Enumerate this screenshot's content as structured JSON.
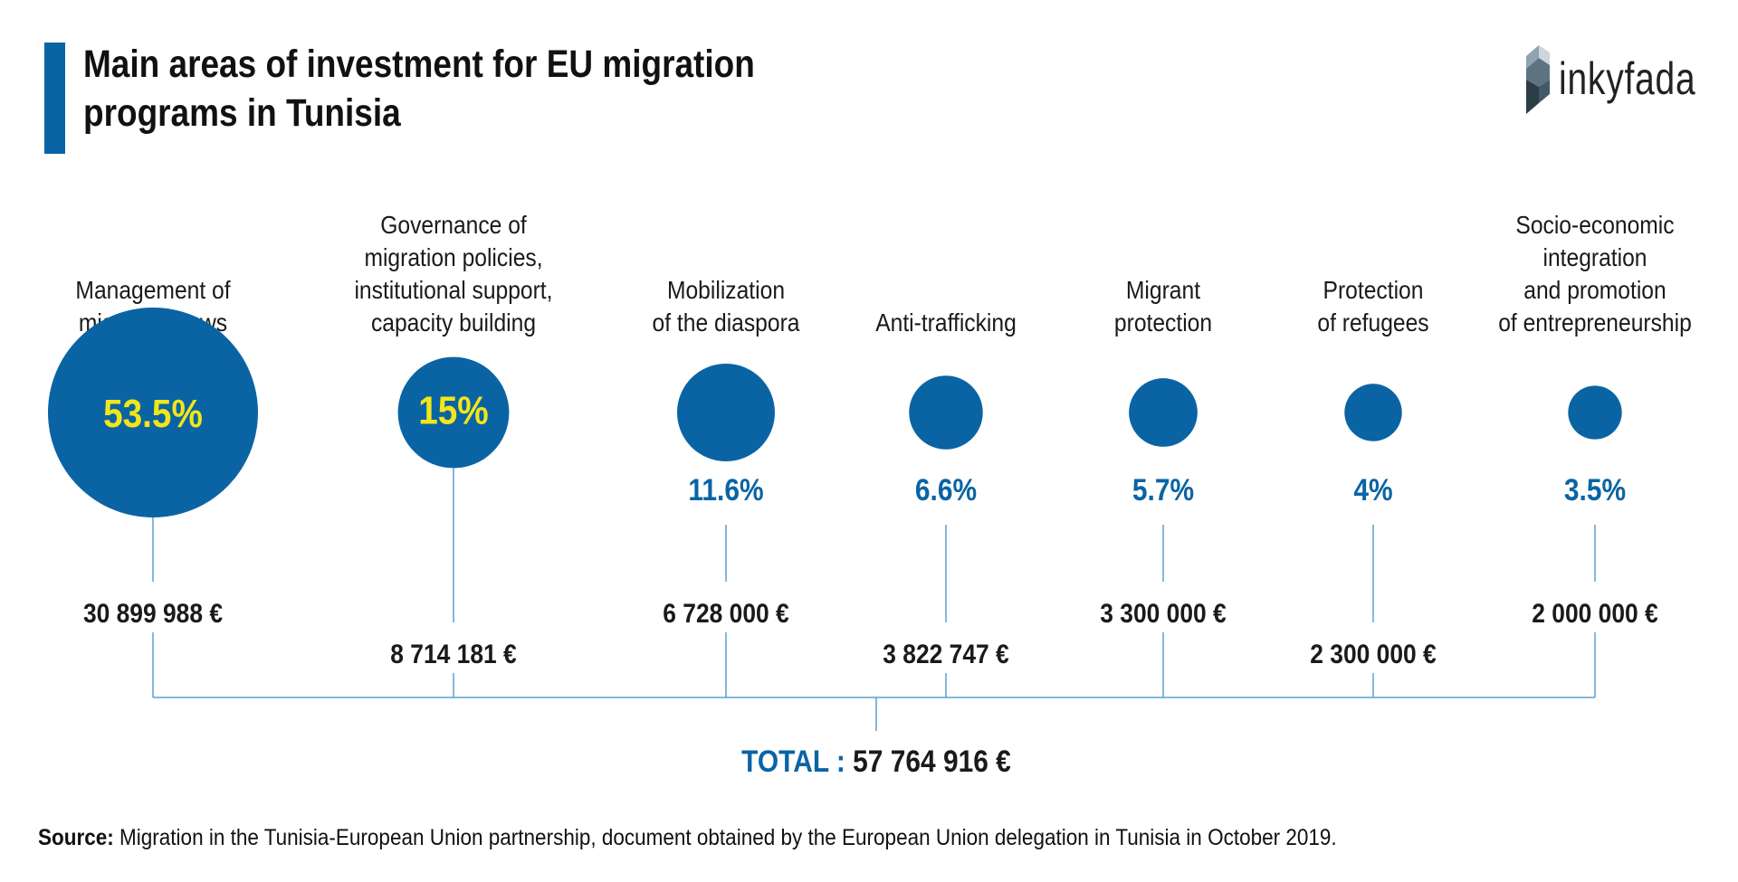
{
  "title": {
    "line1": "Main areas of investment for EU migration",
    "line2": "programs in Tunisia"
  },
  "logo": {
    "text": "inkyfada",
    "icon": "inkyfada-logo-icon"
  },
  "colors": {
    "accent": "#0a64a4",
    "highlight": "#f2e618",
    "line": "#5aa0cf",
    "text": "#1a1a1a"
  },
  "chart_data": {
    "type": "bubble",
    "unit": "€",
    "categories": [
      {
        "label": [
          "Management of",
          "migration flows"
        ],
        "percent": 53.5,
        "percent_label": "53.5%",
        "amount": 30899988,
        "amount_label": "30 899 988 €",
        "percent_inside": true
      },
      {
        "label": [
          "Governance of",
          "migration policies,",
          "institutional support,",
          "capacity building"
        ],
        "percent": 15,
        "percent_label": "15%",
        "amount": 8714181,
        "amount_label": "8 714 181 €",
        "percent_inside": true
      },
      {
        "label": [
          "Mobilization",
          "of the diaspora"
        ],
        "percent": 11.6,
        "percent_label": "11.6%",
        "amount": 6728000,
        "amount_label": "6 728 000 €",
        "percent_inside": false
      },
      {
        "label": [
          "Anti-trafficking"
        ],
        "percent": 6.6,
        "percent_label": "6.6%",
        "amount": 3822747,
        "amount_label": "3 822 747 €",
        "percent_inside": false
      },
      {
        "label": [
          "Migrant",
          "protection"
        ],
        "percent": 5.7,
        "percent_label": "5.7%",
        "amount": 3300000,
        "amount_label": "3 300 000 €",
        "percent_inside": false
      },
      {
        "label": [
          "Protection",
          "of refugees"
        ],
        "percent": 4,
        "percent_label": "4%",
        "amount": 2300000,
        "amount_label": "2 300 000 €",
        "percent_inside": false
      },
      {
        "label": [
          "Socio-economic",
          "integration",
          "and promotion",
          "of entrepreneurship"
        ],
        "percent": 3.5,
        "percent_label": "3.5%",
        "amount": 2000000,
        "amount_label": "2 000 000 €",
        "percent_inside": false
      }
    ],
    "total": {
      "prefix": "TOTAL :",
      "value": 57764916,
      "value_label": "57 764 916 €"
    }
  },
  "source": {
    "label": "Source:",
    "text": "Migration in the Tunisia-European Union partnership, document obtained by the European Union delegation in Tunisia in October 2019."
  }
}
